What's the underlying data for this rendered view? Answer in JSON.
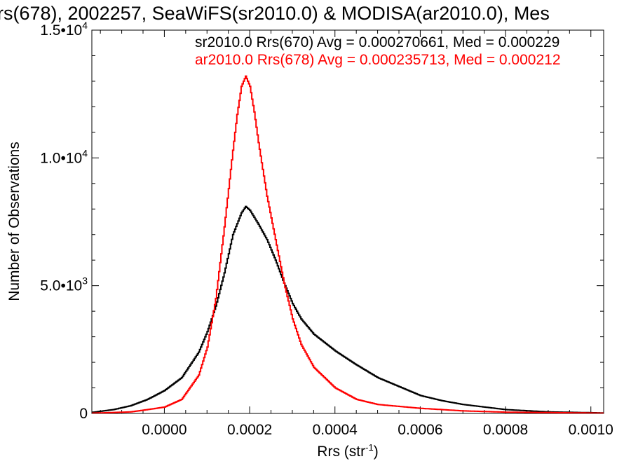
{
  "chart_data": {
    "type": "line",
    "title": "rs(678), 2002257, SeaWiFS(sr2010.0) & MODISA(ar2010.0), Mes",
    "xlabel": "Rrs (str",
    "xlabel_sup": "-1",
    "xlabel_close": ")",
    "ylabel": "Number of Observations",
    "xlim": [
      -0.00017,
      0.00103
    ],
    "ylim": [
      0,
      15000
    ],
    "x_ticks": [
      {
        "v": 0.0,
        "label": "0.0000"
      },
      {
        "v": 0.0002,
        "label": "0.0002"
      },
      {
        "v": 0.0004,
        "label": "0.0004"
      },
      {
        "v": 0.0006,
        "label": "0.0006"
      },
      {
        "v": 0.0008,
        "label": "0.0008"
      },
      {
        "v": 0.001,
        "label": "0.0010"
      }
    ],
    "y_ticks": [
      {
        "v": 0,
        "mant": "0",
        "exp": ""
      },
      {
        "v": 5000,
        "mant": "5.0•10",
        "exp": "3"
      },
      {
        "v": 10000,
        "mant": "1.0•10",
        "exp": "4"
      },
      {
        "v": 15000,
        "mant": "1.5•10",
        "exp": "4"
      }
    ],
    "legend": [
      {
        "text": "sr2010.0 Rrs(670) Avg = 0.000270661, Med = 0.000229",
        "color": "#000000"
      },
      {
        "text": "ar2010.0 Rrs(678) Avg = 0.000235713, Med = 0.000212",
        "color": "#ff0000"
      }
    ],
    "series": [
      {
        "color": "#000000",
        "points": [
          [
            -0.00017,
            40
          ],
          [
            -0.00012,
            150
          ],
          [
            -8e-05,
            300
          ],
          [
            -4e-05,
            550
          ],
          [
            0.0,
            900
          ],
          [
            4e-05,
            1400
          ],
          [
            8e-05,
            2400
          ],
          [
            0.0001,
            3200
          ],
          [
            0.00012,
            4200
          ],
          [
            0.00014,
            5500
          ],
          [
            0.00016,
            7000
          ],
          [
            0.00018,
            7850
          ],
          [
            0.00019,
            8100
          ],
          [
            0.0002,
            7950
          ],
          [
            0.00022,
            7400
          ],
          [
            0.00024,
            6800
          ],
          [
            0.00026,
            6000
          ],
          [
            0.00028,
            5100
          ],
          [
            0.0003,
            4300
          ],
          [
            0.00032,
            3700
          ],
          [
            0.00035,
            3100
          ],
          [
            0.0004,
            2450
          ],
          [
            0.00045,
            1900
          ],
          [
            0.0005,
            1400
          ],
          [
            0.00055,
            1050
          ],
          [
            0.0006,
            700
          ],
          [
            0.00065,
            500
          ],
          [
            0.0007,
            350
          ],
          [
            0.0008,
            150
          ],
          [
            0.0009,
            60
          ],
          [
            0.00103,
            20
          ]
        ]
      },
      {
        "color": "#ff0000",
        "points": [
          [
            -0.00017,
            10
          ],
          [
            -8e-05,
            60
          ],
          [
            -4e-05,
            150
          ],
          [
            0.0,
            250
          ],
          [
            4e-05,
            550
          ],
          [
            8e-05,
            1500
          ],
          [
            0.0001,
            2600
          ],
          [
            0.00012,
            4500
          ],
          [
            0.00014,
            7300
          ],
          [
            0.00016,
            10300
          ],
          [
            0.00017,
            11700
          ],
          [
            0.00018,
            12800
          ],
          [
            0.00019,
            13200
          ],
          [
            0.0002,
            12800
          ],
          [
            0.00021,
            11800
          ],
          [
            0.00022,
            10600
          ],
          [
            0.00024,
            8500
          ],
          [
            0.00026,
            6800
          ],
          [
            0.00028,
            5100
          ],
          [
            0.0003,
            3700
          ],
          [
            0.00032,
            2700
          ],
          [
            0.00035,
            1800
          ],
          [
            0.0004,
            1000
          ],
          [
            0.00045,
            550
          ],
          [
            0.0005,
            350
          ],
          [
            0.0006,
            200
          ],
          [
            0.0007,
            100
          ],
          [
            0.0008,
            50
          ],
          [
            0.00103,
            10
          ]
        ]
      }
    ]
  }
}
